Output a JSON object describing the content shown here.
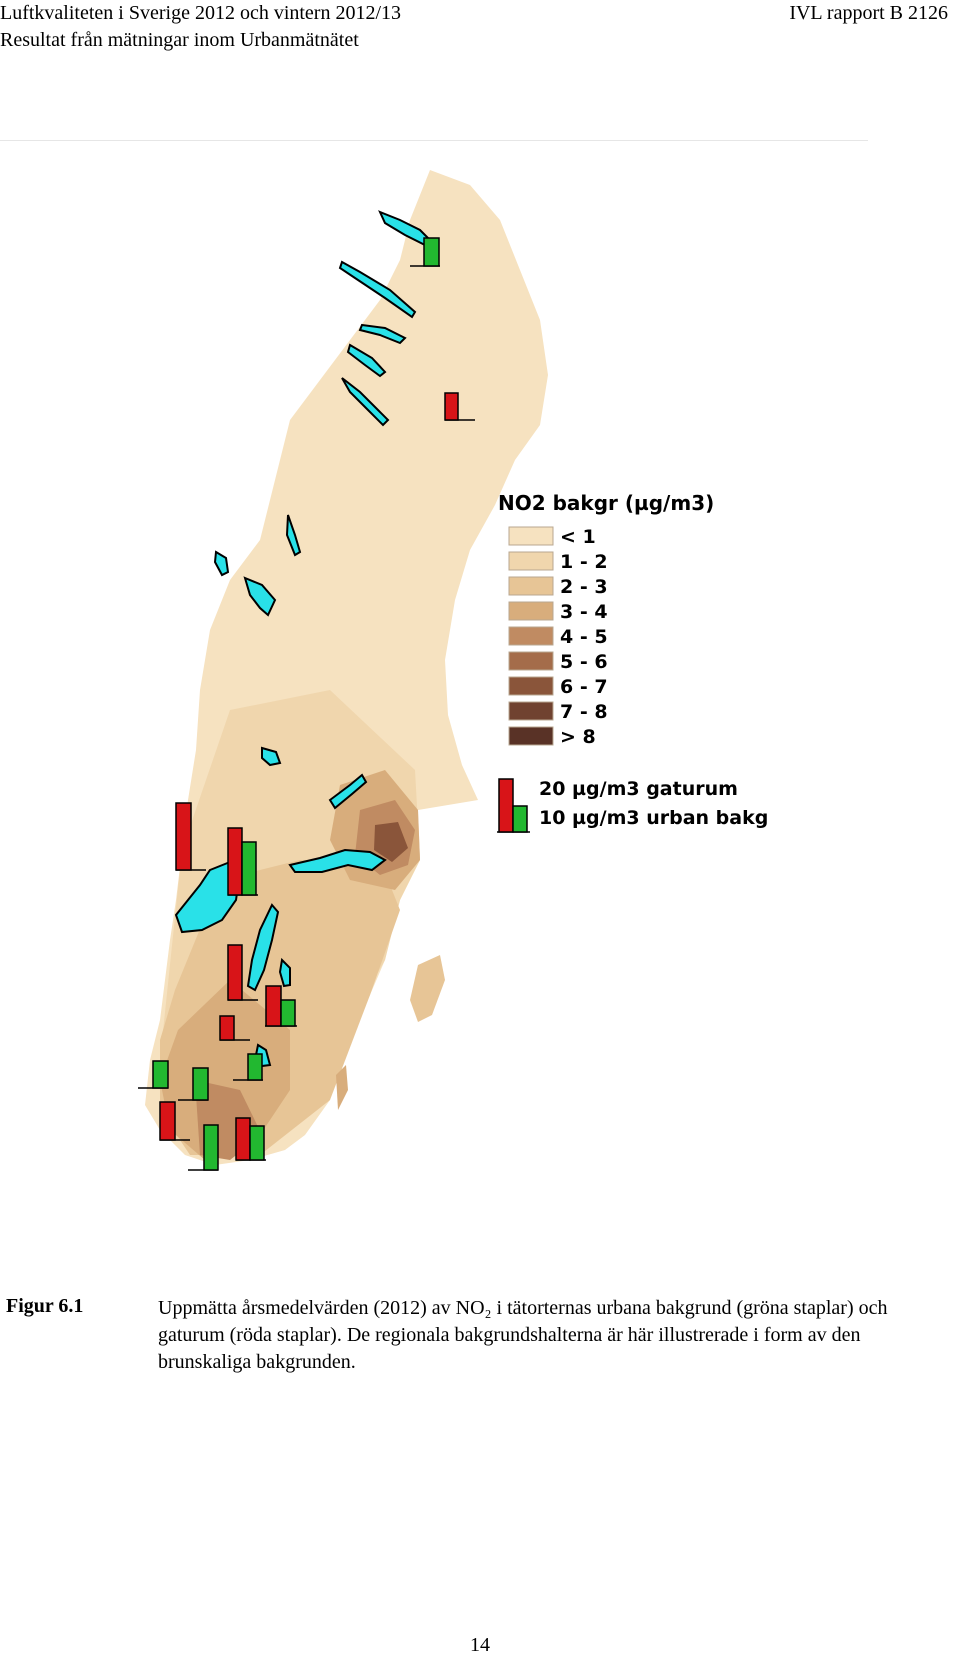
{
  "header": {
    "title_line1": "Luftkvaliteten i Sverige 2012 och vintern 2012/13",
    "title_line2": "Resultat från mätningar inom Urbanmätnätet",
    "report_id": "IVL rapport B 2126"
  },
  "legend": {
    "title": "NO2 bakgr (µg/m3)",
    "classes": [
      {
        "label": "< 1",
        "color": "#f6e2c0"
      },
      {
        "label": "1 - 2",
        "color": "#f0d6ad"
      },
      {
        "label": "2 - 3",
        "color": "#e7c596"
      },
      {
        "label": "3 - 4",
        "color": "#d8ad7c"
      },
      {
        "label": "4 - 5",
        "color": "#c08b62"
      },
      {
        "label": "5 - 6",
        "color": "#a46c4a"
      },
      {
        "label": "6 - 7",
        "color": "#8a553a"
      },
      {
        "label": "7 - 8",
        "color": "#704230"
      },
      {
        "label": "> 8",
        "color": "#593226"
      }
    ],
    "bars": [
      {
        "label": "20 µg/m3 gaturum",
        "color": "#d81418"
      },
      {
        "label": "10 µg/m3 urban bakg",
        "color": "#22b830"
      }
    ]
  },
  "lake_color": "#29e1e8",
  "caption": {
    "label": "Figur 6.1",
    "text": "Uppmätta årsmedelvärden (2012) av NO₂ i tätorternas urbana bakgrund (gröna staplar) och gaturum (röda staplar). De regionala bakgrundshalterna är här illustrerade i form av den brunskaliga bakgrunden."
  },
  "page_number": "14"
}
